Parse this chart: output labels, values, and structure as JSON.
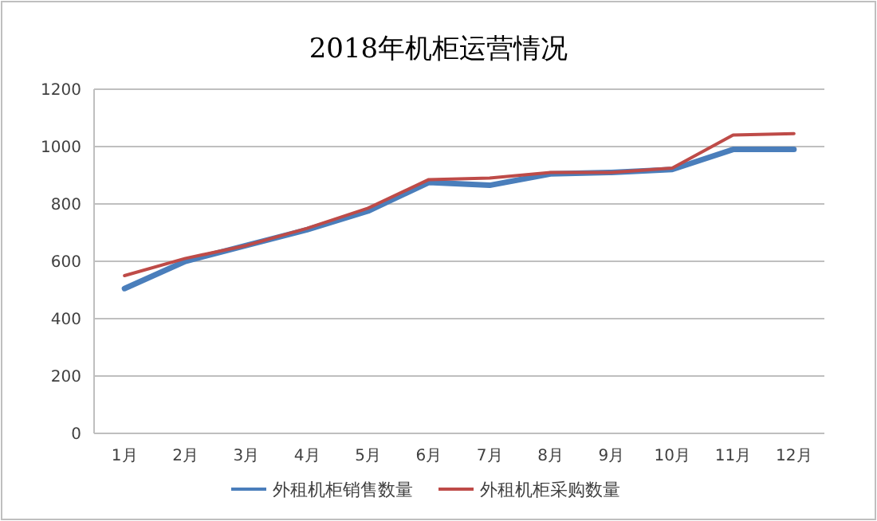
{
  "chart_data": {
    "type": "line",
    "title": "2018年机柜运营情况",
    "categories": [
      "1月",
      "2月",
      "3月",
      "4月",
      "5月",
      "6月",
      "7月",
      "8月",
      "9月",
      "10月",
      "11月",
      "12月"
    ],
    "series": [
      {
        "name": "外租机柜销售数量",
        "color": "#4a7ebb",
        "values": [
          505,
          600,
          655,
          710,
          775,
          875,
          865,
          905,
          910,
          920,
          990,
          990
        ]
      },
      {
        "name": "外租机柜采购数量",
        "color": "#be4b48",
        "values": [
          550,
          610,
          655,
          715,
          785,
          885,
          890,
          910,
          910,
          925,
          1040,
          1045
        ]
      }
    ],
    "ylim": [
      0,
      1200
    ],
    "yticks": [
      0,
      200,
      400,
      600,
      800,
      1000,
      1200
    ],
    "grid": "y",
    "legend": "bottom",
    "marker": "none",
    "line_style": "solid"
  }
}
